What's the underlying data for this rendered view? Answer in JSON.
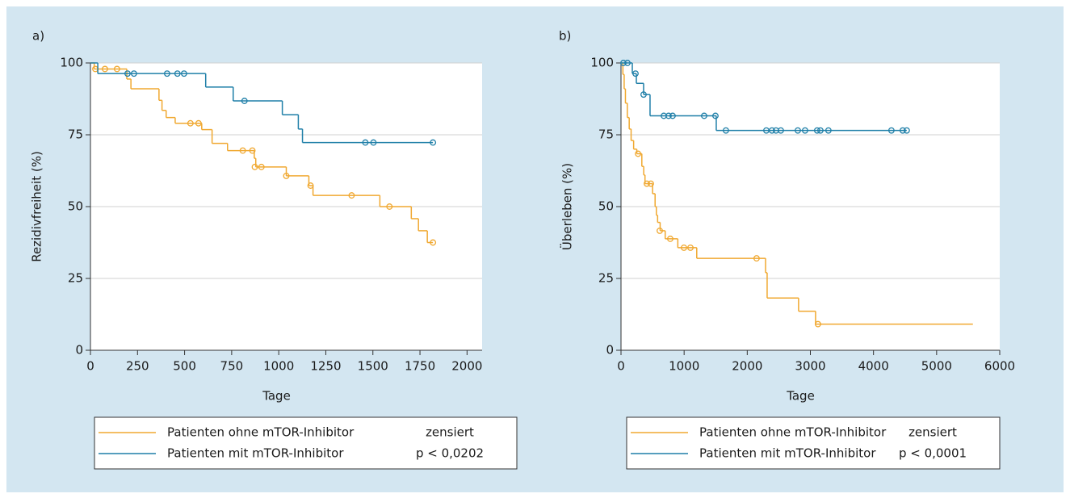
{
  "chart_data": [
    {
      "type": "step",
      "label": "a)",
      "x_label": "Tage",
      "y_label": "Rezidivfreiheit (%)",
      "xlim": [
        0,
        2080
      ],
      "xticks": [
        0,
        250,
        500,
        750,
        1000,
        1250,
        1500,
        1750,
        2000
      ],
      "ylim": [
        0,
        100
      ],
      "yticks": [
        0,
        25,
        50,
        75,
        100
      ],
      "grid": true,
      "series": [
        {
          "name": "Patienten ohne mTOR-Inhibitor",
          "color": "#f0a830",
          "x": [
            0,
            20,
            193,
            215,
            364,
            380,
            402,
            450,
            591,
            646,
            728,
            870,
            878,
            1040,
            1160,
            1182,
            1537,
            1704,
            1742,
            1789,
            1819
          ],
          "values": [
            100,
            97.9,
            94.4,
            91,
            87,
            83.5,
            81,
            79,
            76.8,
            72,
            69.5,
            66.8,
            63.8,
            60.7,
            57.3,
            53.9,
            50,
            45.8,
            41.6,
            37.5,
            37.5
          ],
          "censor_x": [
            26,
            77,
            141,
            531,
            574,
            809,
            860,
            873,
            908,
            1040,
            1169,
            1387,
            1588,
            1819
          ],
          "censor_values": [
            97.9,
            97.9,
            97.9,
            79,
            79,
            69.5,
            69.5,
            63.8,
            63.8,
            60.7,
            57.3,
            53.9,
            50,
            37.5
          ]
        },
        {
          "name": "Patienten mit mTOR-Inhibitor",
          "color": "#1f7fa8",
          "x": [
            0,
            39,
            612,
            758,
            1019,
            1104,
            1126,
            1819
          ],
          "values": [
            100,
            96.3,
            91.6,
            86.8,
            82,
            77,
            72.3,
            72.3
          ],
          "censor_x": [
            197,
            231,
            407,
            462,
            497,
            818,
            1460,
            1503,
            1819
          ],
          "censor_values": [
            96.3,
            96.3,
            96.3,
            96.3,
            96.3,
            86.8,
            72.3,
            72.3,
            72.3
          ]
        }
      ],
      "legend_notes": [
        "zensiert",
        "p < 0,0202"
      ]
    },
    {
      "type": "step",
      "label": "b)",
      "x_label": "Tage",
      "y_label": "Überleben (%)",
      "xlim": [
        0,
        6000
      ],
      "xticks": [
        0,
        1000,
        2000,
        3000,
        4000,
        5000,
        6000
      ],
      "ylim": [
        0,
        100
      ],
      "yticks": [
        0,
        25,
        50,
        75,
        100
      ],
      "grid": true,
      "series": [
        {
          "name": "Patienten ohne mTOR-Inhibitor",
          "color": "#f0a830",
          "x": [
            0,
            30,
            50,
            70,
            100,
            130,
            160,
            200,
            250,
            330,
            360,
            380,
            500,
            540,
            560,
            580,
            620,
            700,
            900,
            1200,
            2290,
            2315,
            2813,
            3082,
            5575
          ],
          "values": [
            100,
            96,
            91,
            86,
            81,
            77,
            73,
            70,
            68.4,
            64,
            61,
            58,
            54.5,
            50,
            47,
            44.5,
            41.6,
            38.8,
            35.7,
            32,
            27,
            18.2,
            13.6,
            9.1,
            9.1
          ],
          "censor_x": [
            270,
            409,
            473,
            614,
            780,
            997,
            1100,
            2148,
            3120
          ],
          "censor_values": [
            68.4,
            58,
            58,
            41.6,
            38.8,
            35.7,
            35.7,
            32,
            9.1
          ]
        },
        {
          "name": "Patienten mit mTOR-Inhibitor",
          "color": "#1f7fa8",
          "x": [
            0,
            179,
            243,
            358,
            460,
            1509,
            4527
          ],
          "values": [
            100,
            96.3,
            92.9,
            89,
            81.6,
            76.5,
            76.5
          ],
          "censor_x": [
            38,
            102,
            230,
            358,
            678,
            754,
            818,
            1317,
            1496,
            1662,
            2302,
            2391,
            2455,
            2532,
            2801,
            2916,
            3107,
            3159,
            3286,
            4284,
            4463,
            4527
          ],
          "censor_values": [
            100,
            100,
            96.3,
            89,
            81.6,
            81.6,
            81.6,
            81.6,
            81.6,
            76.5,
            76.5,
            76.5,
            76.5,
            76.5,
            76.5,
            76.5,
            76.5,
            76.5,
            76.5,
            76.5,
            76.5,
            76.5
          ]
        }
      ],
      "legend_notes": [
        "zensiert",
        "p < 0,0001"
      ]
    }
  ]
}
